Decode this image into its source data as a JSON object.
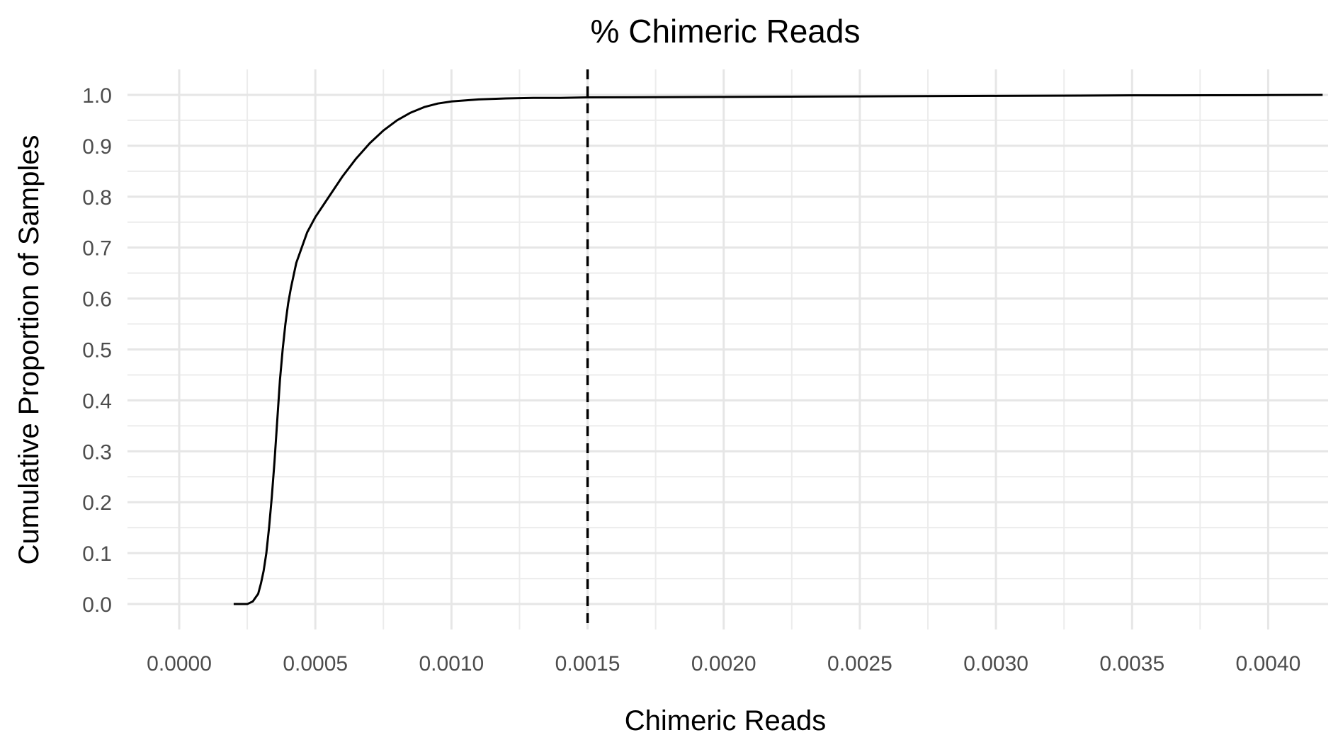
{
  "chart_data": {
    "type": "line",
    "title": "% Chimeric Reads",
    "xlabel": "Chimeric Reads",
    "ylabel": "Cumulative Proportion of Samples",
    "xlim": [
      -0.00019,
      0.00422
    ],
    "ylim": [
      -0.05,
      1.05
    ],
    "x_ticks": [
      0.0,
      0.0005,
      0.001,
      0.0015,
      0.002,
      0.0025,
      0.003,
      0.0035,
      0.004
    ],
    "x_tick_labels": [
      "0.0000",
      "0.0005",
      "0.0010",
      "0.0015",
      "0.0020",
      "0.0025",
      "0.0030",
      "0.0035",
      "0.0040"
    ],
    "y_ticks": [
      0.0,
      0.1,
      0.2,
      0.3,
      0.4,
      0.5,
      0.6,
      0.7,
      0.8,
      0.9,
      1.0
    ],
    "y_tick_labels": [
      "0.0",
      "0.1",
      "0.2",
      "0.3",
      "0.4",
      "0.5",
      "0.6",
      "0.7",
      "0.8",
      "0.9",
      "1.0"
    ],
    "grid": true,
    "legend": "none",
    "reference_line": {
      "x": 0.0015,
      "style": "dashed"
    },
    "series": [
      {
        "x": [
          0.0002,
          0.00025,
          0.00027,
          0.00029,
          0.0003,
          0.00031,
          0.00032,
          0.00033,
          0.00034,
          0.00035,
          0.00036,
          0.00037,
          0.00038,
          0.00039,
          0.0004,
          0.00041,
          0.00042,
          0.00043,
          0.00044,
          0.00045,
          0.00046,
          0.00047,
          0.00048,
          0.0005,
          0.00055,
          0.0006,
          0.00065,
          0.0007,
          0.00075,
          0.0008,
          0.00085,
          0.0009,
          0.00095,
          0.001,
          0.0011,
          0.0012,
          0.0013,
          0.0014,
          0.0015,
          0.002,
          0.0025,
          0.003,
          0.0035,
          0.004,
          0.0042
        ],
        "y": [
          0.0,
          0.0,
          0.005,
          0.02,
          0.04,
          0.065,
          0.1,
          0.15,
          0.21,
          0.28,
          0.36,
          0.44,
          0.5,
          0.55,
          0.59,
          0.62,
          0.645,
          0.67,
          0.685,
          0.7,
          0.715,
          0.73,
          0.74,
          0.76,
          0.8,
          0.84,
          0.875,
          0.905,
          0.93,
          0.95,
          0.965,
          0.976,
          0.983,
          0.987,
          0.991,
          0.993,
          0.994,
          0.994,
          0.995,
          0.996,
          0.997,
          0.998,
          0.999,
          0.9995,
          1.0
        ]
      }
    ]
  }
}
